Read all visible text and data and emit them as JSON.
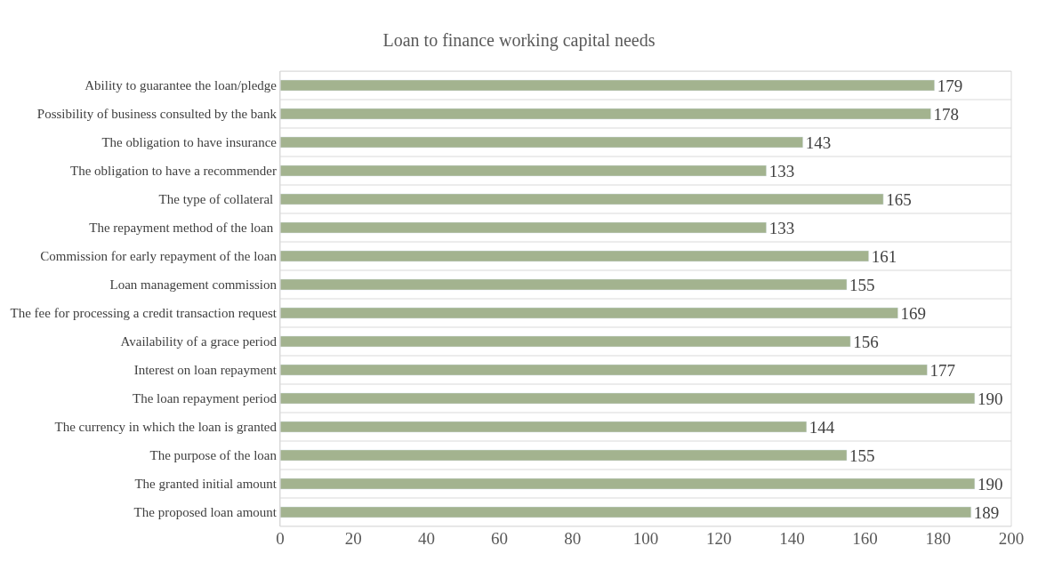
{
  "chart_data": {
    "type": "bar",
    "orientation": "horizontal",
    "title": "Loan to finance working capital needs",
    "categories": [
      "Ability to guarantee the loan/pledge",
      "Possibility of business consulted by the bank",
      "The obligation to have insurance",
      "The obligation to have a recommender",
      "The type of collateral ",
      "The repayment method of the loan ",
      "Commission for early repayment of the loan",
      "Loan management commission",
      "The fee for processing a credit transaction request",
      "Availability of a grace period",
      "Interest on loan repayment",
      "The loan repayment period",
      "The currency in which the loan is granted",
      "The purpose of the loan",
      "The granted initial amount",
      "The proposed loan amount"
    ],
    "values": [
      179,
      178,
      143,
      133,
      165,
      133,
      161,
      155,
      169,
      156,
      177,
      190,
      144,
      155,
      190,
      189
    ],
    "color": "#a3b38f",
    "xlim": [
      0,
      200
    ],
    "xticks": [
      0,
      20,
      40,
      60,
      80,
      100,
      120,
      140,
      160,
      180,
      200
    ],
    "grid": "y",
    "data_labels": true,
    "legend": false
  }
}
